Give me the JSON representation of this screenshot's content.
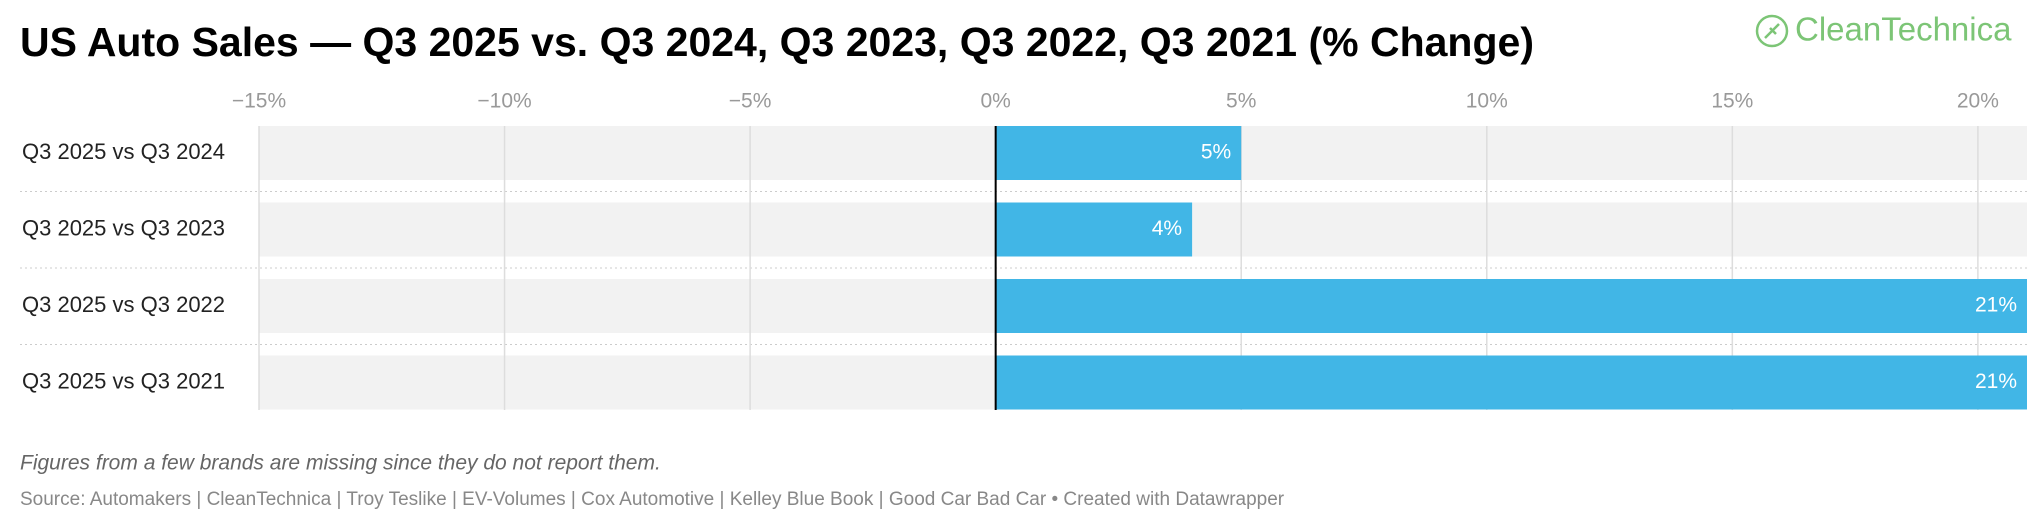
{
  "logo": "CleanTechnica",
  "chart_data": {
    "type": "bar",
    "orientation": "horizontal",
    "title": "US Auto Sales — Q3 2025 vs. Q3 2024, Q3 2023, Q3 2022, Q3 2021 (% Change)",
    "categories": [
      "Q3 2025 vs Q3 2024",
      "Q3 2025 vs Q3 2023",
      "Q3 2025 vs Q3 2022",
      "Q3 2025 vs Q3 2021"
    ],
    "values": [
      5,
      4,
      21,
      21
    ],
    "value_labels": [
      "5%",
      "4%",
      "21%",
      "21%"
    ],
    "color": "#41b6e6",
    "xlim": [
      -15,
      21
    ],
    "xticks": [
      {
        "value": -15,
        "label": "−15%"
      },
      {
        "value": -10,
        "label": "−10%"
      },
      {
        "value": -5,
        "label": "−5%"
      },
      {
        "value": 0,
        "label": "0%"
      },
      {
        "value": 5,
        "label": "5%"
      },
      {
        "value": 10,
        "label": "10%"
      },
      {
        "value": 15,
        "label": "15%"
      },
      {
        "value": 20,
        "label": "20%"
      }
    ],
    "grid": true,
    "note": "Figures from a few brands are missing since they do not report them.",
    "source": "Source: Automakers | CleanTechnica | Troy Teslike | EV-Volumes | Cox Automotive | Kelley Blue Book | Good Car Bad Car • Created with Datawrapper"
  }
}
